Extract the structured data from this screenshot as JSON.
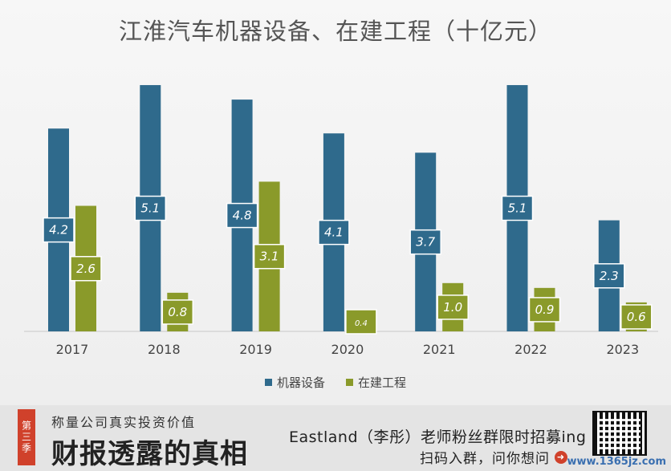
{
  "chart_data": {
    "type": "bar",
    "title": "江淮汽车机器设备、在建工程（十亿元）",
    "categories": [
      "2017",
      "2018",
      "2019",
      "2020",
      "2021",
      "2022",
      "2023"
    ],
    "series": [
      {
        "name": "机器设备",
        "color": "#2f6a8c",
        "values": [
          4.2,
          5.1,
          4.8,
          4.1,
          3.7,
          5.1,
          2.3
        ],
        "labels": [
          "4.2",
          "5.1",
          "4.8",
          "4.1",
          "3.7",
          "5.1",
          "2.3"
        ]
      },
      {
        "name": "在建工程",
        "color": "#8a9a2a",
        "values": [
          2.6,
          0.8,
          3.1,
          0.4,
          1.0,
          0.9,
          0.6
        ],
        "labels": [
          "2.6",
          "0.8",
          "3.1",
          "0.4",
          "1.0",
          "0.9",
          "0.6"
        ]
      }
    ],
    "ylim": [
      0,
      5.4
    ],
    "grid": false,
    "legend": "bottom"
  },
  "footer": {
    "season": "第三季",
    "subtitle": "称量公司真实投资价值",
    "brand": "财报透露的真相",
    "recruit": "Eastland（李彤）老师粉丝群限时招募ing",
    "cta": "扫码入群，问你想问",
    "watermark": "www.1365jz.com"
  }
}
